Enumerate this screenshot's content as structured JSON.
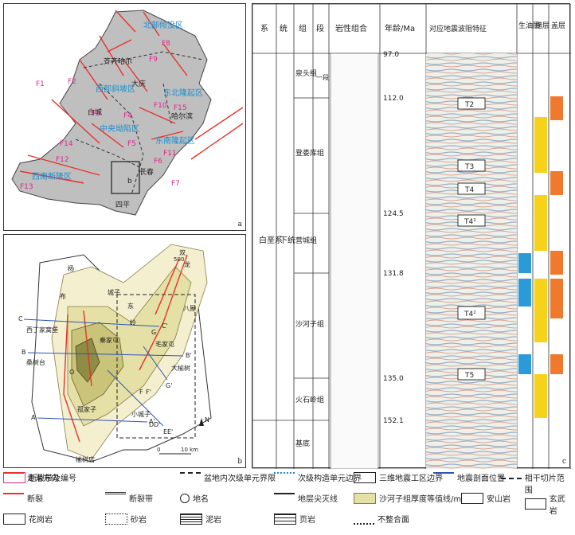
{
  "panel_a": {
    "tag": "a",
    "faults": [
      "F1",
      "F2",
      "F3",
      "F4",
      "F5",
      "F6",
      "F7",
      "F8",
      "F9",
      "F10",
      "F11",
      "F12",
      "F13",
      "F14",
      "F15"
    ],
    "places": [
      "齐齐哈尔",
      "大庆",
      "白城",
      "哈尔滨",
      "长春",
      "四平"
    ],
    "regions": [
      "北部倾没区",
      "西部斜坡区",
      "中央坳陷区",
      "东北隆起区",
      "东南隆起区",
      "西南断隆区"
    ],
    "box_label": "b"
  },
  "panel_b": {
    "tag": "b",
    "places": [
      "杨",
      "城子",
      "东",
      "岭",
      "西丁家窝堡",
      "桑树台",
      "孤家子",
      "小城子",
      "大榆树",
      "八屋",
      "毛家屯",
      "秦家屯",
      "布",
      "双",
      "龙",
      "榆树店"
    ],
    "sections": [
      "C",
      "C'",
      "B",
      "B'",
      "A",
      "A'",
      "D",
      "D'",
      "E",
      "E'",
      "F",
      "F'",
      "G",
      "G'",
      "O"
    ],
    "contour": "500",
    "scale": [
      "0",
      "10 km"
    ],
    "north": "N"
  },
  "panel_c": {
    "tag": "c",
    "headers": [
      "系",
      "统",
      "组",
      "段",
      "岩性组合",
      "年龄/Ma",
      "对应地震波阻特征",
      "生油层",
      "储层",
      "盖层"
    ],
    "system": "白垩系",
    "series": "下统",
    "formations": [
      "泉头组",
      "登娄库组",
      "营城组",
      "沙河子组",
      "火石岭组",
      "基底"
    ],
    "member": "一段",
    "ages": [
      "97.0",
      "112.0",
      "124.5",
      "131.8",
      "135.0",
      "152.1"
    ],
    "reflectors": [
      "T2",
      "T3",
      "T4",
      "T4¹",
      "T4²",
      "T5"
    ]
  },
  "legend": [
    {
      "label": "断裂带及编号",
      "sym": "F12"
    },
    {
      "label": "走滑方向",
      "sym": "arrow"
    },
    {
      "label": "盆地内次级单元界限",
      "sym": "dash"
    },
    {
      "label": "次级构造单元边界",
      "sym": "dot"
    },
    {
      "label": "三维地震工区边界",
      "sym": "box"
    },
    {
      "label": "地震剖面位置",
      "sym": "blue"
    },
    {
      "label": "相干切片范围",
      "sym": "dashdot"
    },
    {
      "label": "断裂",
      "sym": "red"
    },
    {
      "label": "断裂带",
      "sym": "band"
    },
    {
      "label": "地名",
      "sym": "circle"
    },
    {
      "label": "地层尖灭线",
      "sym": "pinch"
    },
    {
      "label": "沙河子组厚度等值线/m",
      "sym": "500"
    },
    {
      "label": "安山岩",
      "sym": "v"
    },
    {
      "label": "玄武岩",
      "sym": "basalt"
    },
    {
      "label": "花岗岩",
      "sym": "granite"
    },
    {
      "label": "砂岩",
      "sym": "sand"
    },
    {
      "label": "泥岩",
      "sym": "mud"
    },
    {
      "label": "页岩",
      "sym": "shale"
    },
    {
      "label": "不整合面",
      "sym": "wave"
    }
  ]
}
